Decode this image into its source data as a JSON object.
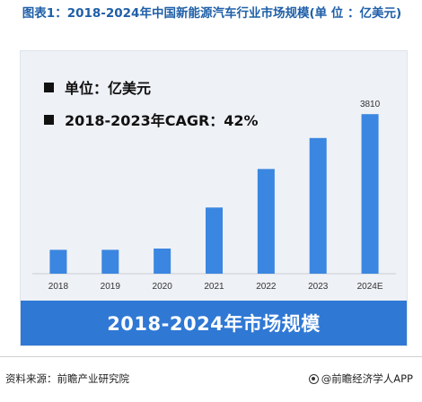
{
  "title": "图表1：2018-2024年中国新能源汽车行业市场规模(单 位 ：亿美元)",
  "legend": {
    "unit_text": "单位：亿美元",
    "cagr_text": "2018-2023年CAGR：42%"
  },
  "banner_text": "2018-2024年市场规模",
  "footer": {
    "source": "资料来源：前瞻产业研究院",
    "brand": "@前瞻经济学人APP",
    "brand_icon": "qianzhan-logo-icon"
  },
  "colors": {
    "bar": "#3a86e0",
    "panel": "#eef1f6",
    "banner": "#2f78d4",
    "title": "#1f5fa8"
  },
  "chart_data": {
    "type": "bar",
    "categories": [
      "2018",
      "2019",
      "2020",
      "2021",
      "2022",
      "2023",
      "2024E"
    ],
    "values": [
      570,
      570,
      600,
      1580,
      2500,
      3240,
      3810
    ],
    "data_labels": [
      "",
      "",
      "",
      "",
      "",
      "",
      "3810"
    ],
    "title": "",
    "xlabel": "",
    "ylabel": "",
    "ylim": [
      0,
      4200
    ],
    "grid": false,
    "legend": "none"
  }
}
